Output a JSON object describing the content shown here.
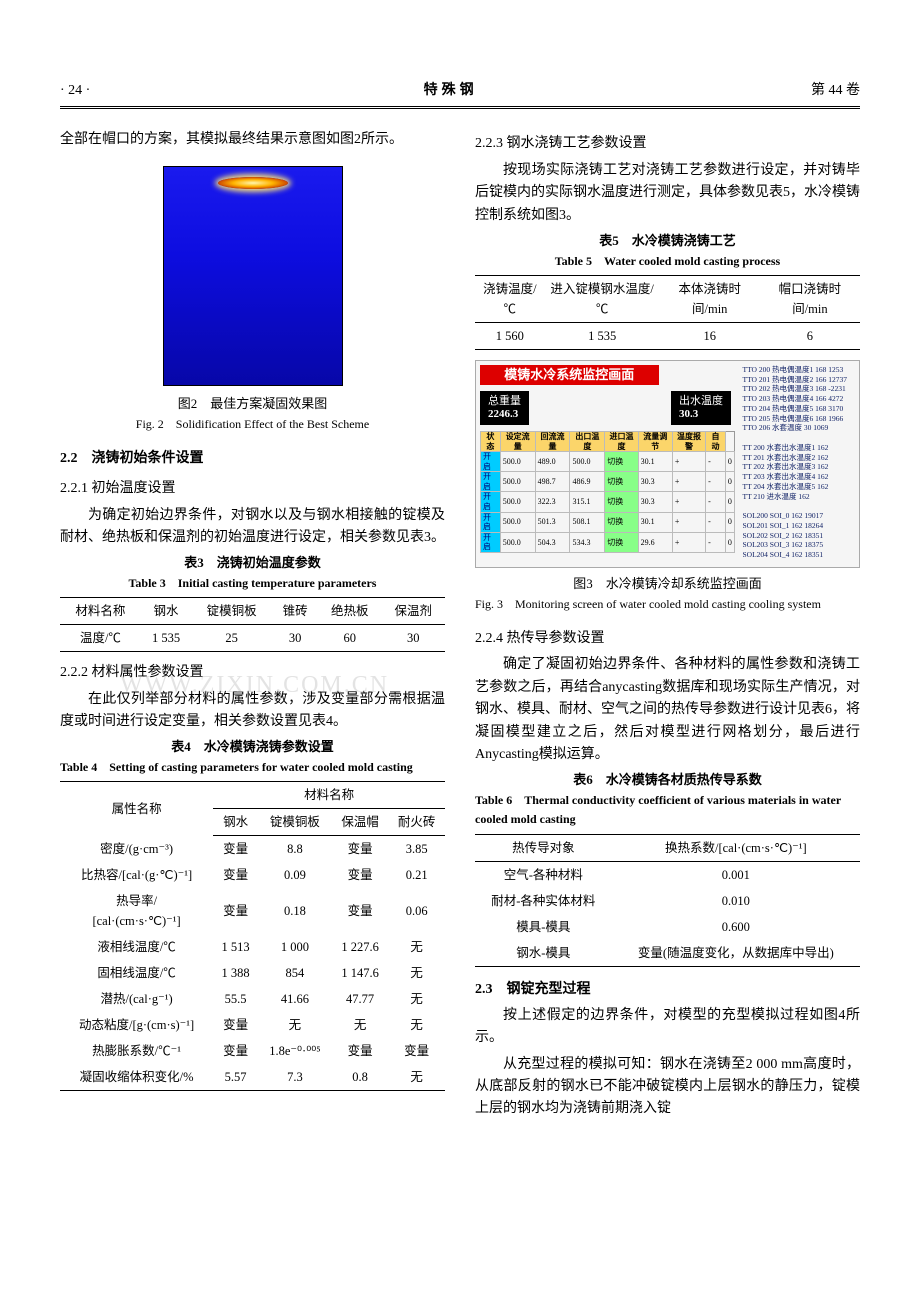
{
  "header": {
    "page_left": "· 24 ·",
    "journal": "特殊钢",
    "page_right": "第 44 卷"
  },
  "col_left": {
    "intro_para": "全部在帽口的方案，其模拟最终结果示意图如图2所示。",
    "fig2": {
      "cn": "图2　最佳方案凝固效果图",
      "en": "Fig. 2　Solidification Effect of the Best Scheme"
    },
    "sec22": "2.2　浇铸初始条件设置",
    "sec221": "2.2.1 初始温度设置",
    "para221": "为确定初始边界条件，对钢水以及与钢水相接触的锭模及耐材、绝热板和保温剂的初始温度进行设定，相关参数见表3。",
    "table3": {
      "cap_cn": "表3　浇铸初始温度参数",
      "cap_en": "Table 3　Initial casting temperature parameters",
      "headers": [
        "材料名称",
        "钢水",
        "锭模铜板",
        "锥砖",
        "绝热板",
        "保温剂"
      ],
      "row_label": "温度/℃",
      "values": [
        "1 535",
        "25",
        "30",
        "60",
        "30"
      ]
    },
    "sec222": "2.2.2 材料属性参数设置",
    "para222": "在此仅列举部分材料的属性参数，涉及变量部分需根据温度或时间进行设定变量，相关参数设置见表4。",
    "table4": {
      "cap_cn": "表4　水冷模铸浇铸参数设置",
      "cap_en": "Table 4　Setting of casting parameters for water cooled mold casting",
      "col_header_top": "材料名称",
      "attr_label": "属性名称",
      "cols": [
        "钢水",
        "锭模铜板",
        "保温帽",
        "耐火砖"
      ],
      "rows": [
        {
          "label": "密度/(g·cm⁻³)",
          "vals": [
            "变量",
            "8.8",
            "变量",
            "3.85"
          ]
        },
        {
          "label": "比热容/[cal·(g·℃)⁻¹]",
          "vals": [
            "变量",
            "0.09",
            "变量",
            "0.21"
          ]
        },
        {
          "label": "热导率/\n[cal·(cm·s·℃)⁻¹]",
          "vals": [
            "变量",
            "0.18",
            "变量",
            "0.06"
          ]
        },
        {
          "label": "液相线温度/℃",
          "vals": [
            "1 513",
            "1 000",
            "1 227.6",
            "无"
          ]
        },
        {
          "label": "固相线温度/℃",
          "vals": [
            "1 388",
            "854",
            "1 147.6",
            "无"
          ]
        },
        {
          "label": "潜热/(cal·g⁻¹)",
          "vals": [
            "55.5",
            "41.66",
            "47.77",
            "无"
          ]
        },
        {
          "label": "动态粘度/[g·(cm·s)⁻¹]",
          "vals": [
            "变量",
            "无",
            "无",
            "无"
          ]
        },
        {
          "label": "热膨胀系数/℃⁻¹",
          "vals": [
            "变量",
            "1.8e⁻⁰·⁰⁰⁵",
            "变量",
            "变量"
          ]
        },
        {
          "label": "凝固收缩体积变化/%",
          "vals": [
            "5.57",
            "7.3",
            "0.8",
            "无"
          ]
        }
      ]
    }
  },
  "col_right": {
    "sec223": "2.2.3 钢水浇铸工艺参数设置",
    "para223": "按现场实际浇铸工艺对浇铸工艺参数进行设定，并对铸毕后锭模内的实际钢水温度进行测定，具体参数见表5，水冷模铸控制系统如图3。",
    "table5": {
      "cap_cn": "表5　水冷模铸浇铸工艺",
      "cap_en": "Table 5　Water cooled mold casting process",
      "headers": [
        "浇铸温度/℃",
        "进入锭模钢水温度/℃",
        "本体浇铸时间/min",
        "帽口浇铸时间/min"
      ],
      "values": [
        "1 560",
        "1 535",
        "16",
        "6"
      ]
    },
    "fig3": {
      "monitor_title": "模铸水冷系统监控画面",
      "weight_label": "总重量",
      "weight_val": "2246.3",
      "temp_label": "出水温度",
      "temp_val": "30.3",
      "grid_headers": [
        "状态",
        "设定流量",
        "回流流量",
        "出口温度",
        "进口温度",
        "流量调节",
        "温度报警",
        "自动"
      ],
      "grid_rows": [
        [
          "开启",
          "500.0",
          "489.0",
          "500.0",
          "切换",
          "30.1",
          "+",
          "-",
          "0"
        ],
        [
          "开启",
          "500.0",
          "498.7",
          "486.9",
          "切换",
          "30.3",
          "+",
          "-",
          "0"
        ],
        [
          "开启",
          "500.0",
          "322.3",
          "315.1",
          "切换",
          "30.3",
          "+",
          "-",
          "0"
        ],
        [
          "开启",
          "500.0",
          "501.3",
          "508.1",
          "切换",
          "30.1",
          "+",
          "-",
          "0"
        ],
        [
          "开启",
          "500.0",
          "504.3",
          "534.3",
          "切换",
          "29.6",
          "+",
          "-",
          "0"
        ]
      ],
      "cn": "图3　水冷模铸冷却系统监控画面",
      "en": "Fig. 3　Monitoring screen of water cooled mold casting cooling system"
    },
    "sec224": "2.2.4 热传导参数设置",
    "para224": "确定了凝固初始边界条件、各种材料的属性参数和浇铸工艺参数之后，再结合anycasting数据库和现场实际生产情况，对钢水、模具、耐材、空气之间的热传导参数进行设计见表6，将凝固模型建立之后，然后对模型进行网格划分，最后进行Anycasting模拟运算。",
    "table6": {
      "cap_cn": "表6　水冷模铸各材质热传导系数",
      "cap_en": "Table 6　Thermal conductivity coefficient of various materials in water cooled mold casting",
      "headers": [
        "热传导对象",
        "换热系数/[cal·(cm·s·℃)⁻¹]"
      ],
      "rows": [
        [
          "空气‑各种材料",
          "0.001"
        ],
        [
          "耐材‑各种实体材料",
          "0.010"
        ],
        [
          "模具‑模具",
          "0.600"
        ],
        [
          "钢水‑模具",
          "变量(随温度变化，从数据库中导出)"
        ]
      ]
    },
    "sec23": "2.3　钢锭充型过程",
    "para23a": "按上述假定的边界条件，对模型的充型模拟过程如图4所示。",
    "para23b": "从充型过程的模拟可知：钢水在浇铸至2 000 mm高度时，从底部反射的钢水已不能冲破锭模内上层钢水的静压力，锭模上层的钢水均为浇铸前期浇入锭"
  },
  "watermark": "WWW.ZIXIN.COM.CN"
}
